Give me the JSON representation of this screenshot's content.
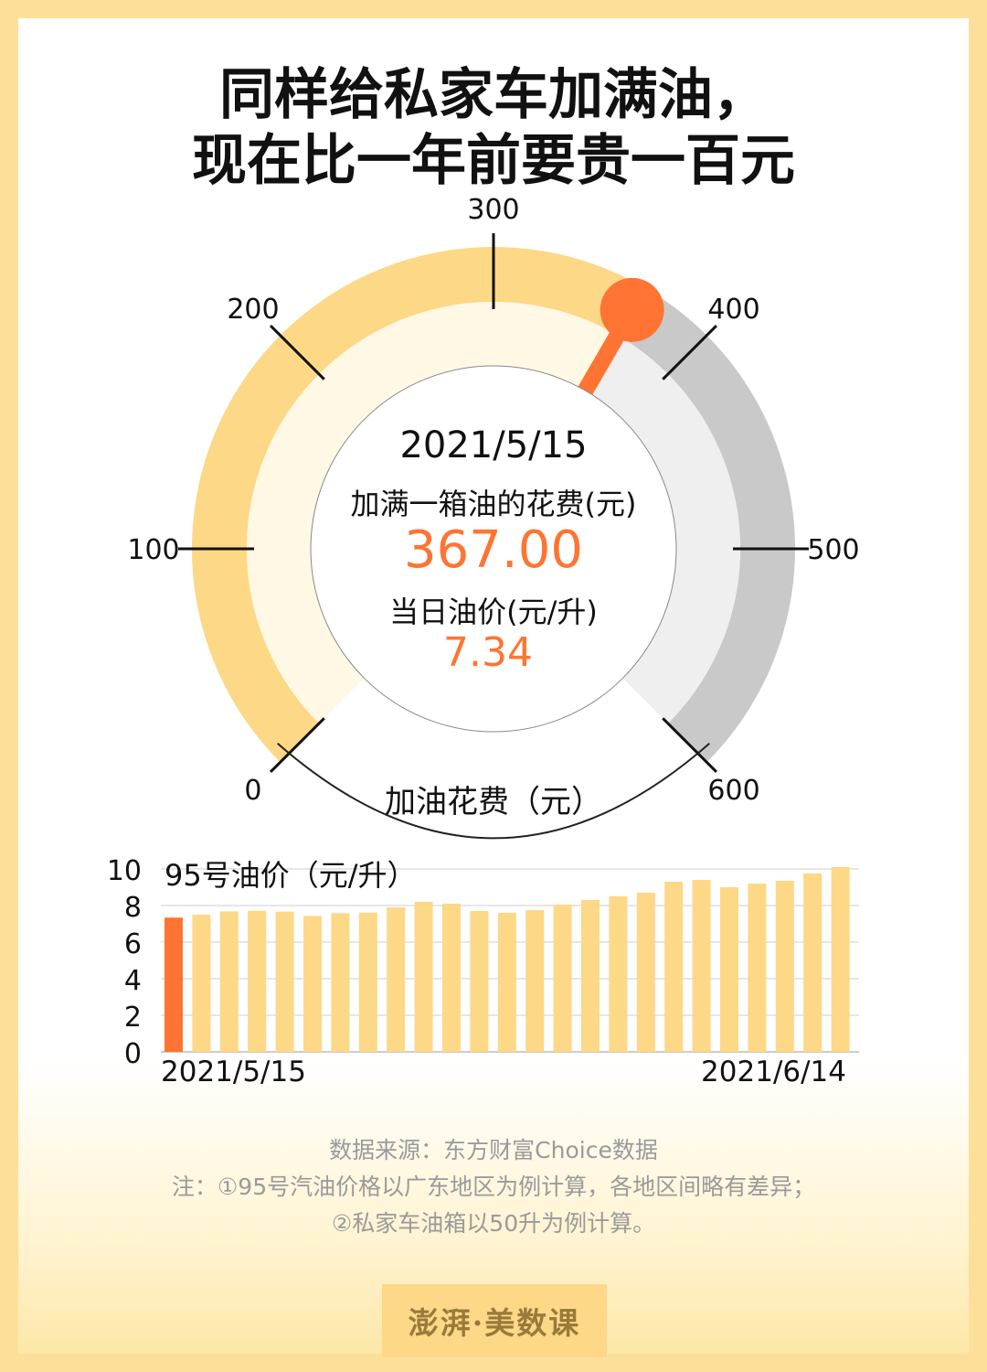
{
  "title": {
    "line1": "同样给私家车加满油，",
    "line2": "现在比一年前要贵一百元"
  },
  "gauge": {
    "date": "2021/5/15",
    "cost_label": "加满一箱油的花费(元)",
    "cost_value": "367.00",
    "price_label": "当日油价(元/升)",
    "price_value": "7.34",
    "axis_label": "加油花费（元）",
    "min": 0,
    "max": 600,
    "value": 367,
    "ticks": [
      "0",
      "100",
      "200",
      "300",
      "400",
      "500",
      "600"
    ]
  },
  "chart_data": {
    "type": "bar",
    "title": "95号油价（元/升）",
    "ylim": [
      0,
      10
    ],
    "yticks": [
      "0",
      "2",
      "4",
      "6",
      "8",
      "10"
    ],
    "x_start_label": "2021/5/15",
    "x_end_label": "2021/6/14",
    "highlight_index": 0,
    "values": [
      7.34,
      7.5,
      7.68,
      7.71,
      7.67,
      7.43,
      7.58,
      7.61,
      7.9,
      8.2,
      8.1,
      7.7,
      7.6,
      7.75,
      8.05,
      8.3,
      8.5,
      8.7,
      9.3,
      9.4,
      9.0,
      9.2,
      9.35,
      9.75,
      10.1
    ],
    "colors": {
      "highlight": "#ff7433",
      "normal": "#fcd887"
    }
  },
  "notes": {
    "source": "数据来源：东方财富Choice数据",
    "note1": "注：①95号汽油价格以广东地区为例计算，各地区间略有差异；",
    "note2": "②私家车油箱以50升为例计算。"
  },
  "logo": {
    "text": "澎湃·美数课"
  },
  "colors": {
    "accent": "#ff7433",
    "yellow": "#fcd887",
    "gray": "#c9c9c9"
  }
}
